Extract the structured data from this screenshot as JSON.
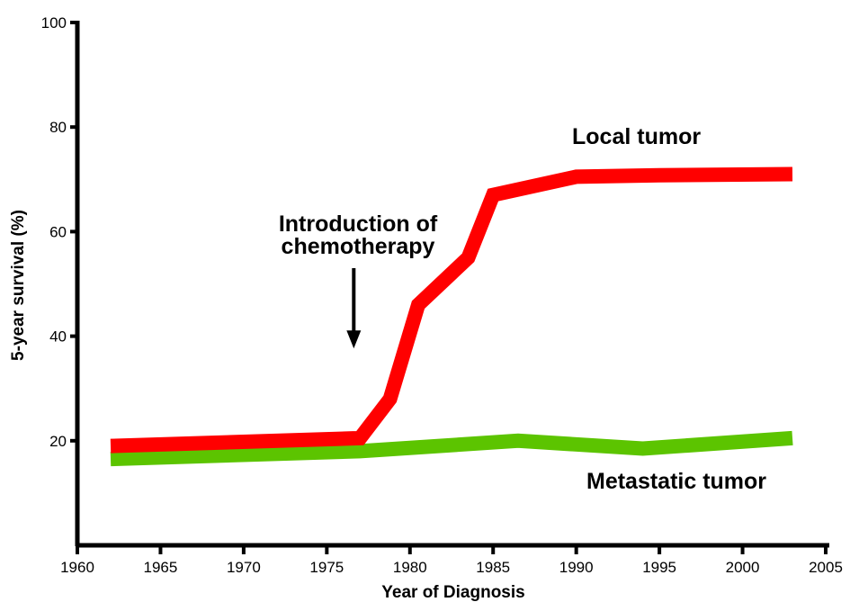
{
  "chart_data": {
    "type": "line",
    "xlabel": "Year of Diagnosis",
    "ylabel": "5-year survival (%)",
    "xlim": [
      1960,
      2005
    ],
    "ylim": [
      0,
      100
    ],
    "x_ticks": [
      1960,
      1965,
      1970,
      1975,
      1980,
      1985,
      1990,
      1995,
      2000,
      2005
    ],
    "y_ticks": [
      20,
      40,
      60,
      80,
      100
    ],
    "grid": false,
    "series": [
      {
        "name": "Local tumor",
        "color": "#ff0000",
        "points": [
          [
            1962,
            19
          ],
          [
            1977,
            20.5
          ],
          [
            1978.8,
            28
          ],
          [
            1980.5,
            46
          ],
          [
            1983.5,
            55
          ],
          [
            1985,
            67
          ],
          [
            1990,
            70.5
          ],
          [
            1995,
            70.8
          ],
          [
            2003,
            71
          ]
        ]
      },
      {
        "name": "Metastatic tumor",
        "color": "#5cc400",
        "points": [
          [
            1962,
            16.5
          ],
          [
            1977,
            18
          ],
          [
            1986.5,
            20
          ],
          [
            1994,
            18.5
          ],
          [
            2003,
            20.5
          ]
        ]
      }
    ],
    "annotations": [
      {
        "text": "Introduction of chemotherapy",
        "lines": [
          "Introduction of",
          "chemotherapy"
        ],
        "arrow_to": [
          1977,
          38
        ]
      }
    ]
  }
}
